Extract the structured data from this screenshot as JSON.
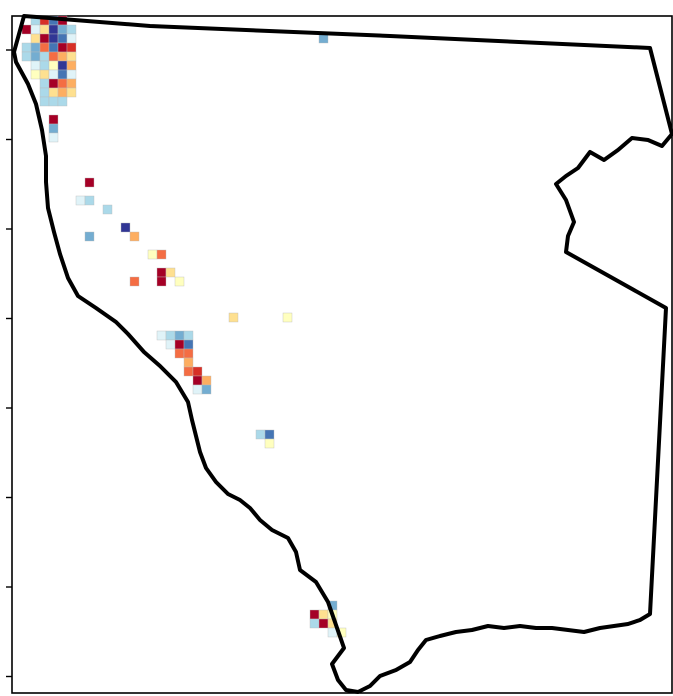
{
  "map": {
    "type": "choropleth-grid",
    "region_outline": "state-boundary",
    "palette": [
      "#313695",
      "#4575b4",
      "#74add1",
      "#abd9e9",
      "#e0f3f8",
      "#ffffbf",
      "#fee090",
      "#fdae61",
      "#f46d43",
      "#d73027",
      "#a50026"
    ],
    "cells": [
      {
        "c": 1,
        "r": 0,
        "v": 3
      },
      {
        "c": 2,
        "r": 0,
        "v": 9
      },
      {
        "c": 3,
        "r": 0,
        "v": 1
      },
      {
        "c": 4,
        "r": 0,
        "v": 10
      },
      {
        "c": 0,
        "r": 1,
        "v": 10
      },
      {
        "c": 1,
        "r": 1,
        "v": 4
      },
      {
        "c": 2,
        "r": 1,
        "v": 6
      },
      {
        "c": 3,
        "r": 1,
        "v": 0
      },
      {
        "c": 4,
        "r": 1,
        "v": 2
      },
      {
        "c": 5,
        "r": 1,
        "v": 3
      },
      {
        "c": 1,
        "r": 2,
        "v": 6
      },
      {
        "c": 2,
        "r": 2,
        "v": 10
      },
      {
        "c": 3,
        "r": 2,
        "v": 0
      },
      {
        "c": 4,
        "r": 2,
        "v": 1
      },
      {
        "c": 5,
        "r": 2,
        "v": 4
      },
      {
        "c": 0,
        "r": 3,
        "v": 3
      },
      {
        "c": 1,
        "r": 3,
        "v": 2
      },
      {
        "c": 2,
        "r": 3,
        "v": 8
      },
      {
        "c": 3,
        "r": 3,
        "v": 1
      },
      {
        "c": 4,
        "r": 3,
        "v": 10
      },
      {
        "c": 5,
        "r": 3,
        "v": 9
      },
      {
        "c": 0,
        "r": 4,
        "v": 3
      },
      {
        "c": 1,
        "r": 4,
        "v": 2
      },
      {
        "c": 2,
        "r": 4,
        "v": 3
      },
      {
        "c": 3,
        "r": 4,
        "v": 8
      },
      {
        "c": 4,
        "r": 4,
        "v": 7
      },
      {
        "c": 5,
        "r": 4,
        "v": 6
      },
      {
        "c": 1,
        "r": 5,
        "v": 4
      },
      {
        "c": 2,
        "r": 5,
        "v": 3
      },
      {
        "c": 3,
        "r": 5,
        "v": 5
      },
      {
        "c": 4,
        "r": 5,
        "v": 0
      },
      {
        "c": 5,
        "r": 5,
        "v": 7
      },
      {
        "c": 1,
        "r": 6,
        "v": 5
      },
      {
        "c": 2,
        "r": 6,
        "v": 6
      },
      {
        "c": 3,
        "r": 6,
        "v": 4
      },
      {
        "c": 4,
        "r": 6,
        "v": 1
      },
      {
        "c": 5,
        "r": 6,
        "v": 4
      },
      {
        "c": 2,
        "r": 7,
        "v": 3
      },
      {
        "c": 3,
        "r": 7,
        "v": 10
      },
      {
        "c": 4,
        "r": 7,
        "v": 8
      },
      {
        "c": 5,
        "r": 7,
        "v": 7
      },
      {
        "c": 2,
        "r": 8,
        "v": 3
      },
      {
        "c": 3,
        "r": 8,
        "v": 6
      },
      {
        "c": 4,
        "r": 8,
        "v": 7
      },
      {
        "c": 5,
        "r": 8,
        "v": 6
      },
      {
        "c": 2,
        "r": 9,
        "v": 3
      },
      {
        "c": 3,
        "r": 9,
        "v": 3
      },
      {
        "c": 4,
        "r": 9,
        "v": 3
      },
      {
        "c": 3,
        "r": 11,
        "v": 10
      },
      {
        "c": 3,
        "r": 12,
        "v": 2
      },
      {
        "c": 3,
        "r": 13,
        "v": 4
      },
      {
        "c": 33,
        "r": 2,
        "v": 2
      },
      {
        "c": 7,
        "r": 18,
        "v": 10
      },
      {
        "c": 6,
        "r": 20,
        "v": 4
      },
      {
        "c": 7,
        "r": 20,
        "v": 3
      },
      {
        "c": 9,
        "r": 21,
        "v": 3
      },
      {
        "c": 11,
        "r": 23,
        "v": 0
      },
      {
        "c": 7,
        "r": 24,
        "v": 2
      },
      {
        "c": 12,
        "r": 24,
        "v": 7
      },
      {
        "c": 14,
        "r": 26,
        "v": 5
      },
      {
        "c": 15,
        "r": 26,
        "v": 8
      },
      {
        "c": 15,
        "r": 28,
        "v": 10
      },
      {
        "c": 16,
        "r": 28,
        "v": 6
      },
      {
        "c": 12,
        "r": 29,
        "v": 8
      },
      {
        "c": 15,
        "r": 29,
        "v": 10
      },
      {
        "c": 17,
        "r": 29,
        "v": 5
      },
      {
        "c": 23,
        "r": 33,
        "v": 6
      },
      {
        "c": 29,
        "r": 33,
        "v": 5
      },
      {
        "c": 15,
        "r": 35,
        "v": 4
      },
      {
        "c": 16,
        "r": 35,
        "v": 3
      },
      {
        "c": 17,
        "r": 35,
        "v": 2
      },
      {
        "c": 18,
        "r": 35,
        "v": 3
      },
      {
        "c": 16,
        "r": 36,
        "v": 4
      },
      {
        "c": 17,
        "r": 36,
        "v": 10
      },
      {
        "c": 18,
        "r": 36,
        "v": 1
      },
      {
        "c": 17,
        "r": 37,
        "v": 8
      },
      {
        "c": 18,
        "r": 37,
        "v": 8
      },
      {
        "c": 18,
        "r": 38,
        "v": 7
      },
      {
        "c": 18,
        "r": 39,
        "v": 8
      },
      {
        "c": 19,
        "r": 39,
        "v": 9
      },
      {
        "c": 19,
        "r": 40,
        "v": 10
      },
      {
        "c": 20,
        "r": 40,
        "v": 7
      },
      {
        "c": 19,
        "r": 41,
        "v": 4
      },
      {
        "c": 20,
        "r": 41,
        "v": 2
      },
      {
        "c": 26,
        "r": 46,
        "v": 3
      },
      {
        "c": 27,
        "r": 46,
        "v": 1
      },
      {
        "c": 27,
        "r": 47,
        "v": 5
      },
      {
        "c": 34,
        "r": 65,
        "v": 2
      },
      {
        "c": 32,
        "r": 66,
        "v": 10
      },
      {
        "c": 33,
        "r": 66,
        "v": 6
      },
      {
        "c": 34,
        "r": 66,
        "v": 5
      },
      {
        "c": 32,
        "r": 67,
        "v": 3
      },
      {
        "c": 33,
        "r": 67,
        "v": 10
      },
      {
        "c": 34,
        "r": 67,
        "v": 6
      },
      {
        "c": 34,
        "r": 68,
        "v": 4
      },
      {
        "c": 35,
        "r": 68,
        "v": 5
      }
    ],
    "y_ticks": 8
  }
}
